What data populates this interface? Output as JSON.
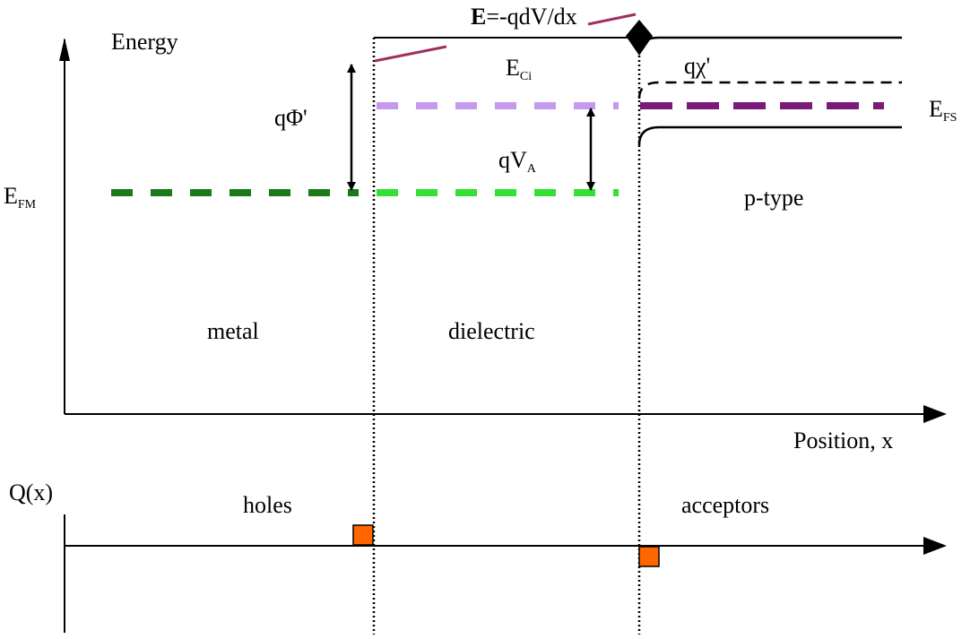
{
  "labels": {
    "energy": "Energy",
    "field_bold": "E",
    "field_rest": "=-qdV/dx",
    "eci_main": "E",
    "eci_sub": "Ci",
    "qchi": "qχ'",
    "qphi": "qΦ'",
    "qva_main": "qV",
    "qva_sub": "A",
    "efs_main": "E",
    "efs_sub": "FS",
    "efm_main": "E",
    "efm_sub": "FM",
    "ptype": "p-type",
    "metal": "metal",
    "dielectric": "dielectric",
    "position": "Position, x",
    "qx": "Q(x)",
    "holes": "holes",
    "acceptors": "acceptors"
  },
  "colors": {
    "metal_fermi": "#1a7a1a",
    "dielectric_fermi": "#33e033",
    "dielectric_conduction": "#c49aee",
    "semiconductor_fermi": "#7a1a7a",
    "field_line": "#a03060",
    "charge_box": "#ff6600"
  }
}
